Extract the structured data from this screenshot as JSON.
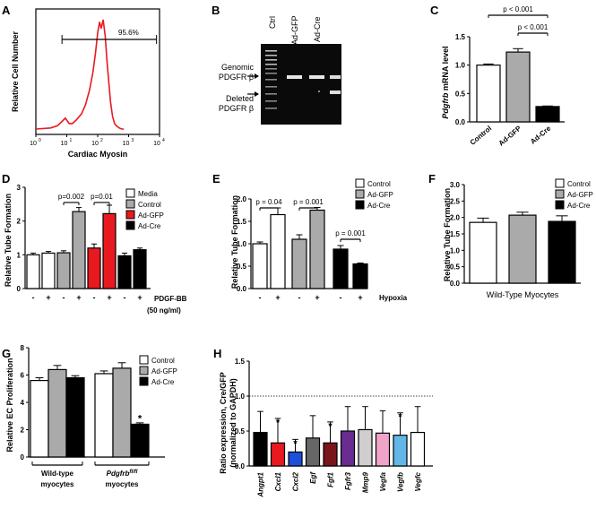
{
  "colors": {
    "red": "#e8191f",
    "gray": "#aaaaaa",
    "black": "#000000",
    "white": "#ffffff",
    "blue": "#1e4fd8",
    "darkred": "#7a1519",
    "purple": "#6a2c91",
    "lightgray": "#cfcfcf",
    "pink": "#f0a3c8",
    "lightblue": "#62b7e8"
  },
  "panels": {
    "A": {
      "letter": "A",
      "ylabel": "Relative Cell Number",
      "xlabel": "Cardiac Myosin",
      "gate_label": "95.6%",
      "x_ticks": [
        "10",
        "10",
        "10",
        "10",
        "10"
      ],
      "x_tick_exps": [
        "0",
        "1",
        "2",
        "3",
        "4"
      ]
    },
    "B": {
      "letter": "B",
      "lanes": [
        "Ctrl",
        "Ad-GFP",
        "Ad-Cre"
      ],
      "band1_line1": "Genomic",
      "band1_line2": "PDGFR β",
      "band2_line1": "Deleted",
      "band2_line2": "PDGFR β"
    },
    "C": {
      "letter": "C",
      "sig1": "p < 0.001",
      "sig2": "p < 0.001",
      "ylabel_gene": "Pdgfrb",
      "ylabel_rest": " mRNA level"
    },
    "D": {
      "letter": "D",
      "treatment_line1": "PDGF-BB",
      "treatment_line2": "(50 ng/ml)",
      "sig1": "p=0.002",
      "sig2": "p=0.01",
      "legend": [
        "Media",
        "Control",
        "Ad-GFP",
        "Ad-Cre"
      ]
    },
    "E": {
      "letter": "E",
      "treatment": "Hypoxia",
      "sig1": "p = 0.04",
      "sig2": "p = 0.001",
      "sig3": "p = 0.001",
      "legend": [
        "Control",
        "Ad-GFP",
        "Ad-Cre"
      ]
    },
    "F": {
      "letter": "F",
      "group_label": "Wild-Type Myocytes",
      "legend": [
        "Control",
        "Ad-GFP",
        "Ad-Cre"
      ]
    },
    "G": {
      "letter": "G",
      "group1_line1": "Wild-type",
      "group1_line2": "myocytes",
      "group2_gene": "Pdgfrb",
      "group2_sup": "fl/fl",
      "group2_line2": "myocytes",
      "star": "*",
      "legend": [
        "Control",
        "Ad-GFP",
        "Ad-Cre"
      ]
    },
    "H": {
      "letter": "H",
      "ylabel_line1": "Ratio expression, Cre/GFP",
      "ylabel_line2": "(normalized to GAPDH)",
      "star": "*"
    }
  },
  "chart_data": [
    {
      "panel": "A",
      "type": "line",
      "title": "",
      "xlabel": "Cardiac Myosin",
      "ylabel": "Relative Cell Number",
      "x_scale": "log",
      "xlim": [
        1,
        10000
      ],
      "x": [
        1,
        3,
        5,
        7,
        9,
        12,
        15,
        20,
        30,
        40,
        55,
        70,
        85,
        100,
        115,
        130,
        150,
        175,
        200,
        230,
        260,
        300,
        350,
        400,
        450,
        500,
        600,
        700
      ],
      "y": [
        0,
        0.01,
        0.03,
        0.07,
        0.1,
        0.05,
        0.05,
        0.08,
        0.14,
        0.22,
        0.36,
        0.52,
        0.7,
        0.88,
        0.98,
        0.92,
        1.0,
        0.85,
        0.62,
        0.42,
        0.25,
        0.12,
        0.05,
        0.03,
        0.02,
        0.01,
        0.0,
        0.0
      ],
      "annotations": [
        "95.6%"
      ]
    },
    {
      "panel": "C",
      "type": "bar",
      "categories": [
        "Control",
        "Ad-GFP",
        "Ad-Cre"
      ],
      "values": [
        1.0,
        1.23,
        0.27
      ],
      "errors": [
        0.02,
        0.06,
        0.01
      ],
      "ylim": [
        0,
        1.5
      ],
      "yticks": [
        "0.0",
        "0.5",
        "1.0",
        "1.5"
      ],
      "ylabel": "Pdgfrb mRNA level",
      "sig": [
        {
          "from": 0,
          "to": 2,
          "label": "p < 0.001"
        },
        {
          "from": 1,
          "to": 2,
          "label": "p < 0.001"
        }
      ]
    },
    {
      "panel": "D",
      "type": "bar",
      "ylabel": "Relative Tube Formation",
      "ylim": [
        0,
        3
      ],
      "yticks": [
        "0",
        "1",
        "2",
        "3"
      ],
      "categories": [
        "-",
        "+",
        "-",
        "+",
        "-",
        "+",
        "-",
        "+"
      ],
      "groups": [
        "Media",
        "Media",
        "Control",
        "Control",
        "Ad-GFP",
        "Ad-GFP",
        "Ad-Cre",
        "Ad-Cre"
      ],
      "values": [
        1.0,
        1.05,
        1.06,
        2.28,
        1.2,
        2.22,
        0.97,
        1.15
      ],
      "errors": [
        0.05,
        0.05,
        0.06,
        0.12,
        0.12,
        0.25,
        0.08,
        0.05
      ],
      "sig": [
        {
          "from": 2,
          "to": 3,
          "label": "p=0.002"
        },
        {
          "from": 4,
          "to": 5,
          "label": "p=0.01"
        }
      ]
    },
    {
      "panel": "E",
      "type": "bar",
      "ylabel": "Relative Tube Formation",
      "ylim": [
        0,
        2.0
      ],
      "yticks": [
        "0.0",
        "0.5",
        "1.0",
        "1.5",
        "2.0"
      ],
      "categories": [
        "-",
        "+",
        "-",
        "+",
        "-",
        "+"
      ],
      "groups": [
        "Control",
        "Control",
        "Ad-GFP",
        "Ad-GFP",
        "Ad-Cre",
        "Ad-Cre"
      ],
      "values": [
        1.0,
        1.65,
        1.1,
        1.75,
        0.88,
        0.55
      ],
      "errors": [
        0.04,
        0.15,
        0.1,
        0.06,
        0.08,
        0.02
      ],
      "sig": [
        {
          "from": 0,
          "to": 1,
          "label": "p = 0.04"
        },
        {
          "from": 2,
          "to": 3,
          "label": "p = 0.001"
        },
        {
          "from": 4,
          "to": 5,
          "label": "p = 0.001"
        }
      ]
    },
    {
      "panel": "F",
      "type": "bar",
      "ylabel": "Relative Tube Formation",
      "ylim": [
        0,
        3.0
      ],
      "yticks": [
        "0.0",
        "0.5",
        "1.0",
        "1.5",
        "2.0",
        "2.5",
        "3.0"
      ],
      "categories": [
        "Control",
        "Ad-GFP",
        "Ad-Cre"
      ],
      "values": [
        1.85,
        2.07,
        1.88
      ],
      "errors": [
        0.13,
        0.09,
        0.17
      ],
      "xlabel": "Wild-Type Myocytes"
    },
    {
      "panel": "G",
      "type": "bar",
      "ylabel": "Relative EC Proliferation",
      "ylim": [
        0,
        8
      ],
      "yticks": [
        "0",
        "2",
        "4",
        "6",
        "8"
      ],
      "categories": [
        "Wild-type myocytes",
        "Pdgfrb fl/fl myocytes"
      ],
      "series": [
        {
          "name": "Control",
          "values": [
            5.6,
            6.1
          ],
          "errors": [
            0.2,
            0.2
          ]
        },
        {
          "name": "Ad-GFP",
          "values": [
            6.4,
            6.5
          ],
          "errors": [
            0.3,
            0.4
          ]
        },
        {
          "name": "Ad-Cre",
          "values": [
            5.8,
            2.4
          ],
          "errors": [
            0.15,
            0.1
          ]
        }
      ]
    },
    {
      "panel": "H",
      "type": "bar",
      "ylabel": "Ratio expression, Cre/GFP (normalized to GAPDH)",
      "ylim": [
        0,
        1.5
      ],
      "yticks": [
        "0.0",
        "0.5",
        "1.0",
        "1.5"
      ],
      "categories": [
        "Angpt1",
        "Cxcl1",
        "Cxcl2",
        "Egf",
        "Fgf1",
        "Fgfr3",
        "Mmp9",
        "Vegfa",
        "Vegfb",
        "Vegfc"
      ],
      "values": [
        0.48,
        0.33,
        0.2,
        0.4,
        0.33,
        0.5,
        0.52,
        0.47,
        0.44,
        0.48
      ],
      "errors": [
        0.3,
        0.35,
        0.18,
        0.32,
        0.3,
        0.35,
        0.33,
        0.32,
        0.32,
        0.37
      ],
      "starred": [
        false,
        true,
        true,
        false,
        true,
        false,
        false,
        false,
        true,
        false
      ],
      "reference_line": 1.0
    }
  ]
}
